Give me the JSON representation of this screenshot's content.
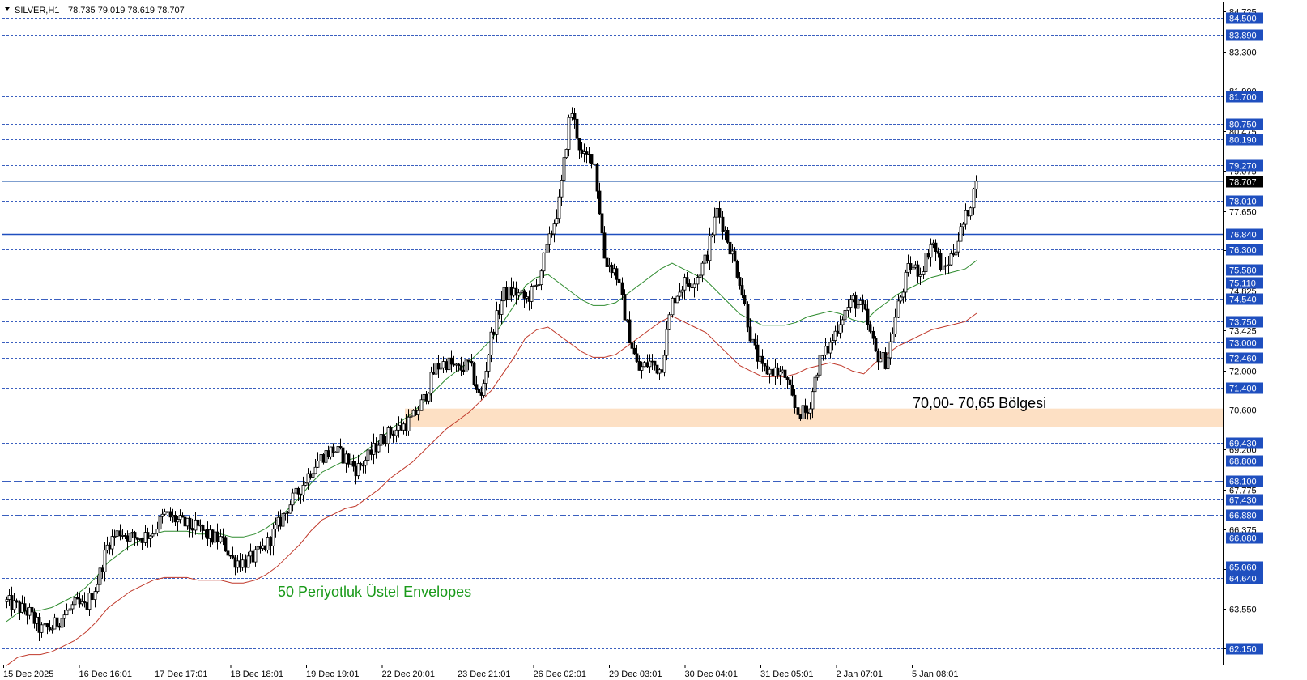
{
  "header": {
    "symbol": "SILVER,H1",
    "ohlc": "78.735 79.019 78.619 78.707"
  },
  "annotations": {
    "envelopes_label": "50 Periyotluk Üstel Envelopes",
    "zone_label": "70,00- 70,65 Bölgesi"
  },
  "colors": {
    "dotted_level": "#3a5fbf",
    "solid_level": "#1f4fbf",
    "current_price_line": "#7f9fcf",
    "zone_fill": "#fde0c4",
    "upper_envelope": "#2e8b2e",
    "lower_envelope": "#c0392b",
    "candle_bull_fill": "#ffffff",
    "candle_bear_fill": "#000000",
    "annotation_text": "#1a9a1a",
    "current_price_tag_bg": "#000000"
  },
  "chart_data": {
    "type": "candlestick",
    "symbol": "SILVER",
    "timeframe": "H1",
    "current_price": 78.707,
    "y_range": [
      61.6,
      85.0
    ],
    "x_labels": [
      "15 Dec 2025",
      "16 Dec 16:01",
      "17 Dec 17:01",
      "18 Dec 18:01",
      "19 Dec 19:01",
      "22 Dec 20:01",
      "23 Dec 21:01",
      "26 Dec 02:01",
      "29 Dec 03:01",
      "30 Dec 04:01",
      "31 Dec 05:01",
      "2 Jan 07:01",
      "5 Jan 08:01"
    ],
    "y_ticks": [
      "84.725",
      "83.300",
      "81.900",
      "80.475",
      "79.075",
      "77.650",
      "76.250",
      "74.825",
      "73.425",
      "72.000",
      "70.600",
      "69.200",
      "67.775",
      "66.375",
      "64.950",
      "63.550",
      "62.150"
    ],
    "levels": [
      {
        "label": "84.500",
        "value": 84.5,
        "style": "dotted"
      },
      {
        "label": "83.890",
        "value": 83.89,
        "style": "dotted"
      },
      {
        "label": "81.700",
        "value": 81.7,
        "style": "dotted"
      },
      {
        "label": "80.750",
        "value": 80.75,
        "style": "dotted"
      },
      {
        "label": "80.190",
        "value": 80.19,
        "style": "dotted"
      },
      {
        "label": "79.270",
        "value": 79.27,
        "style": "dotted"
      },
      {
        "label": "78.010",
        "value": 78.01,
        "style": "dotted"
      },
      {
        "label": "76.840",
        "value": 76.84,
        "style": "solid"
      },
      {
        "label": "76.300",
        "value": 76.3,
        "style": "dotted"
      },
      {
        "label": "75.580",
        "value": 75.58,
        "style": "dotted"
      },
      {
        "label": "75.110",
        "value": 75.11,
        "style": "dotted"
      },
      {
        "label": "74.540",
        "value": 74.54,
        "style": "dashdot"
      },
      {
        "label": "73.750",
        "value": 73.75,
        "style": "dotted"
      },
      {
        "label": "73.000",
        "value": 73.0,
        "style": "dotted"
      },
      {
        "label": "72.460",
        "value": 72.46,
        "style": "dotted"
      },
      {
        "label": "71.400",
        "value": 71.4,
        "style": "dotted"
      },
      {
        "label": "69.430",
        "value": 69.43,
        "style": "dotted"
      },
      {
        "label": "68.800",
        "value": 68.8,
        "style": "dotted"
      },
      {
        "label": "68.100",
        "value": 68.1,
        "style": "dashed"
      },
      {
        "label": "67.430",
        "value": 67.43,
        "style": "dotted"
      },
      {
        "label": "66.880",
        "value": 66.88,
        "style": "dashdot"
      },
      {
        "label": "66.080",
        "value": 66.08,
        "style": "dotted"
      },
      {
        "label": "65.060",
        "value": 65.06,
        "style": "dotted"
      },
      {
        "label": "64.640",
        "value": 64.64,
        "style": "dotted"
      },
      {
        "label": "62.150",
        "value": 62.15,
        "style": "dotted"
      }
    ],
    "zone": {
      "low": 70.0,
      "high": 70.65
    },
    "closes": [
      63.8,
      63.6,
      63.4,
      62.8,
      62.9,
      63.3,
      63.7,
      63.6,
      64.5,
      65.9,
      66.3,
      66.1,
      66.1,
      66.3,
      66.9,
      66.7,
      66.5,
      66.4,
      66.1,
      66.0,
      65.3,
      65.2,
      65.4,
      65.8,
      66.5,
      67.2,
      67.8,
      68.5,
      69.0,
      69.2,
      68.9,
      68.5,
      68.9,
      69.5,
      69.8,
      70.0,
      70.3,
      71.0,
      72.1,
      72.3,
      72.0,
      72.2,
      70.9,
      73.3,
      74.7,
      74.8,
      74.5,
      75.0,
      76.5,
      78.0,
      81.3,
      79.5,
      79.6,
      75.9,
      75.5,
      73.5,
      72.0,
      72.3,
      72.0,
      74.5,
      75.1,
      75.2,
      76.0,
      77.7,
      76.5,
      75.2,
      73.0,
      72.0,
      72.0,
      71.8,
      70.5,
      70.5,
      72.3,
      72.9,
      73.9,
      74.5,
      74.1,
      72.6,
      72.3,
      74.3,
      75.7,
      75.5,
      76.6,
      75.5,
      76.3,
      77.4,
      78.707
    ],
    "upper_envelope": [
      63.1,
      63.4,
      63.5,
      63.5,
      63.6,
      63.8,
      64.0,
      64.3,
      64.7,
      65.2,
      65.5,
      65.8,
      66.0,
      66.2,
      66.3,
      66.3,
      66.3,
      66.2,
      66.2,
      66.2,
      66.1,
      66.1,
      66.2,
      66.4,
      66.7,
      67.1,
      67.5,
      68.0,
      68.4,
      68.6,
      68.8,
      68.9,
      69.2,
      69.5,
      69.9,
      70.2,
      70.5,
      70.9,
      71.3,
      71.7,
      72.0,
      72.3,
      72.7,
      73.1,
      73.7,
      74.3,
      75.0,
      75.3,
      75.4,
      75.1,
      74.8,
      74.5,
      74.3,
      74.3,
      74.4,
      74.7,
      75.0,
      75.3,
      75.6,
      75.8,
      75.6,
      75.4,
      75.2,
      74.8,
      74.4,
      74.0,
      73.8,
      73.6,
      73.6,
      73.6,
      73.7,
      73.9,
      74.0,
      74.1,
      74.0,
      73.8,
      73.7,
      74.1,
      74.4,
      74.7,
      74.9,
      75.1,
      75.3,
      75.4,
      75.5,
      75.6,
      75.9
    ]
  }
}
